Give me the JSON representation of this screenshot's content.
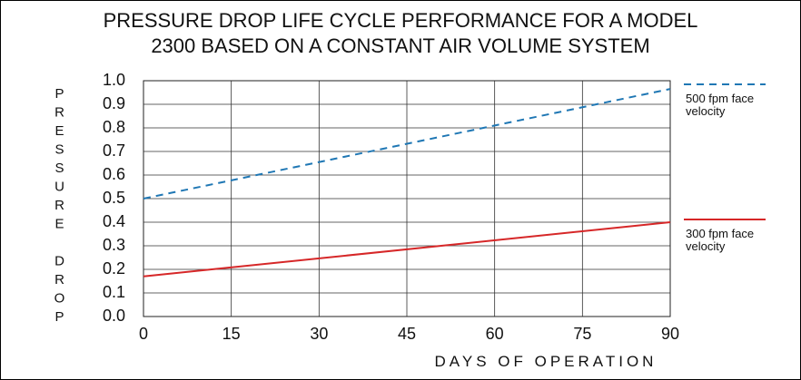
{
  "chart_data": {
    "type": "line",
    "title": "PRESSURE DROP LIFE CYCLE PERFORMANCE FOR A MODEL 2300 BASED ON A CONSTANT AIR VOLUME SYSTEM",
    "y_label": "PRESSURE DROP",
    "x_label": "DAYS OF OPERATION",
    "x": [
      0,
      90
    ],
    "series": [
      {
        "name": "500 fpm face velocity",
        "color": "#1f77b4",
        "style": "dashed",
        "values": [
          0.5,
          0.965
        ]
      },
      {
        "name": "300 fpm face velocity",
        "color": "#d62728",
        "style": "solid",
        "values": [
          0.17,
          0.4
        ]
      }
    ],
    "xlim": [
      0,
      90
    ],
    "xticks": [
      0,
      15,
      30,
      45,
      60,
      75,
      90
    ],
    "ylim": [
      0,
      1
    ],
    "yticks": [
      {
        "value": 0,
        "label": "0.0"
      },
      0.1,
      0.2,
      0.3,
      0.4,
      0.5,
      0.6,
      0.7,
      0.8,
      0.9,
      {
        "value": 1,
        "label": "1.0"
      }
    ],
    "grid": true,
    "legend": "right"
  }
}
